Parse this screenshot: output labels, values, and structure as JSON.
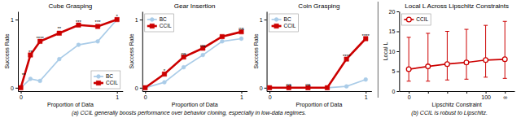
{
  "chart_data": [
    {
      "type": "line",
      "title": "Cube Grasping",
      "x_label": "Proportion of Data",
      "y_label": "Success Rate",
      "x": [
        0,
        0.1,
        0.2,
        0.4,
        0.6,
        0.8,
        1.0
      ],
      "series": [
        {
          "name": "BC",
          "color": "#aacce8",
          "marker": "circle",
          "values": [
            0.0,
            0.13,
            0.1,
            0.42,
            0.63,
            0.68,
            1.0
          ]
        },
        {
          "name": "CCIL",
          "color": "#cc0000",
          "marker": "square",
          "values": [
            0.0,
            0.48,
            0.68,
            0.8,
            0.92,
            0.9,
            1.0
          ]
        }
      ],
      "xlim": [
        -0.03,
        1.06
      ],
      "ylim": [
        -0.05,
        1.12
      ],
      "xticks": [
        0,
        1
      ],
      "yticks": [
        0,
        1
      ],
      "annotations": [
        {
          "x": 0.03,
          "y": 0.16,
          "text": "**"
        },
        {
          "x": 0.1,
          "y": 0.5,
          "text": "**"
        },
        {
          "x": 0.2,
          "y": 0.7,
          "text": "****"
        },
        {
          "x": 0.4,
          "y": 0.84,
          "text": "**"
        },
        {
          "x": 0.6,
          "y": 0.94,
          "text": "***"
        },
        {
          "x": 0.8,
          "y": 0.94,
          "text": "***"
        },
        {
          "x": 1.0,
          "y": 1.02,
          "text": "*"
        }
      ],
      "legend": "lower-right",
      "grid": false,
      "caption": "(a) CCIL generally boosts performance over behavior cloning, especially in low-data regimes."
    },
    {
      "type": "line",
      "title": "Gear Insertion",
      "x_label": "Proportion of Data",
      "y_label": "Success Rate",
      "x": [
        0,
        0.2,
        0.4,
        0.6,
        0.8,
        1.0
      ],
      "series": [
        {
          "name": "BC",
          "color": "#aacce8",
          "marker": "circle",
          "values": [
            0.0,
            0.08,
            0.3,
            0.48,
            0.68,
            0.72
          ]
        },
        {
          "name": "CCIL",
          "color": "#cc0000",
          "marker": "square",
          "values": [
            0.0,
            0.2,
            0.45,
            0.58,
            0.75,
            0.82
          ]
        }
      ],
      "xlim": [
        -0.03,
        1.06
      ],
      "ylim": [
        -0.05,
        1.12
      ],
      "xticks": [
        0,
        1
      ],
      "yticks": [
        0,
        1
      ],
      "annotations": [
        {
          "x": 0.2,
          "y": 0.22,
          "text": "*"
        },
        {
          "x": 0.4,
          "y": 0.47,
          "text": "ns"
        },
        {
          "x": 0.6,
          "y": 0.6,
          "text": "ns"
        },
        {
          "x": 1.0,
          "y": 0.84,
          "text": "ns"
        }
      ],
      "legend": "upper-left",
      "grid": false
    },
    {
      "type": "line",
      "title": "Coin Grasping",
      "x_label": "Proportion of Data",
      "y_label": "Success Rate",
      "x": [
        0,
        0.2,
        0.4,
        0.6,
        0.8,
        1.0
      ],
      "series": [
        {
          "name": "BC",
          "color": "#aacce8",
          "marker": "circle",
          "values": [
            0.0,
            0.0,
            0.0,
            0.0,
            0.02,
            0.12
          ]
        },
        {
          "name": "CCIL",
          "color": "#cc0000",
          "marker": "square",
          "values": [
            0.0,
            0.0,
            0.0,
            0.0,
            0.42,
            0.72
          ]
        }
      ],
      "xlim": [
        -0.03,
        1.06
      ],
      "ylim": [
        -0.05,
        1.12
      ],
      "xticks": [
        0,
        1
      ],
      "yticks": [
        0,
        1
      ],
      "annotations": [
        {
          "x": 0.2,
          "y": 0.02,
          "text": "ns"
        },
        {
          "x": 0.4,
          "y": 0.02,
          "text": "ns"
        },
        {
          "x": 0.8,
          "y": 0.44,
          "text": "****"
        },
        {
          "x": 1.0,
          "y": 0.74,
          "text": "****"
        }
      ],
      "legend": "upper-left",
      "grid": false
    },
    {
      "type": "line",
      "title": "Local L Across Lipschitz Constraints",
      "x_label": "Lipschitz Constraint",
      "y_label": "Local L",
      "categories": [
        "0",
        null,
        null,
        null,
        "100",
        "∞"
      ],
      "series": [
        {
          "name": "CCIL",
          "color": "#cc0000",
          "marker": "circle-open",
          "values": [
            5.5,
            6.2,
            6.8,
            7.2,
            7.8,
            8.0
          ],
          "lo": [
            2.5,
            2.5,
            2.8,
            3.0,
            3.5,
            3.2
          ],
          "hi": [
            13.5,
            14.5,
            15.0,
            15.5,
            16.5,
            17.5
          ]
        }
      ],
      "ylim": [
        0,
        20
      ],
      "yticks": [
        0,
        5,
        10,
        15,
        20
      ],
      "legend": "upper-left",
      "grid": false,
      "caption": "(b) CCIL is robust to Lipschitz."
    }
  ]
}
